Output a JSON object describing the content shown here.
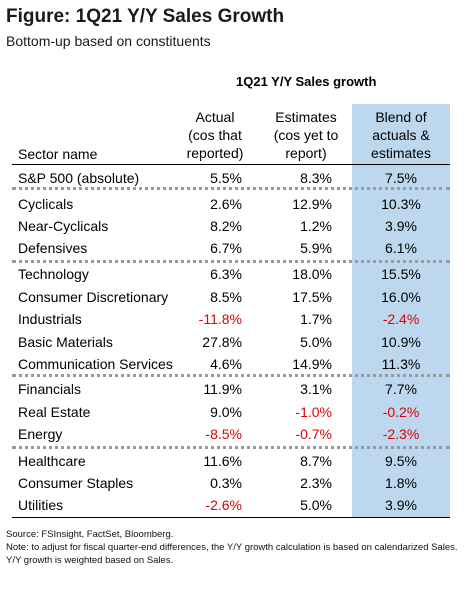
{
  "title": "Figure: 1Q21 Y/Y Sales Growth",
  "subtitle": "Bottom-up based on constituents",
  "group_title": "1Q21 Y/Y Sales growth",
  "headers": {
    "sector": "Sector name",
    "actual": [
      "Actual",
      "(cos that",
      "reported)"
    ],
    "estimates": [
      "Estimates",
      "(cos yet to",
      "report)"
    ],
    "blend": [
      "Blend of",
      "actuals &",
      "estimates"
    ]
  },
  "rows": [
    {
      "name": "S&P 500 (absolute)",
      "actual": "5.5%",
      "estimates": "8.3%",
      "blend": "7.5%"
    },
    {
      "name": "Cyclicals",
      "actual": "2.6%",
      "estimates": "12.9%",
      "blend": "10.3%"
    },
    {
      "name": "Near-Cyclicals",
      "actual": "8.2%",
      "estimates": "1.2%",
      "blend": "3.9%"
    },
    {
      "name": "Defensives",
      "actual": "6.7%",
      "estimates": "5.9%",
      "blend": "6.1%"
    },
    {
      "name": "Technology",
      "actual": "6.3%",
      "estimates": "18.0%",
      "blend": "15.5%"
    },
    {
      "name": "Consumer Discretionary",
      "actual": "8.5%",
      "estimates": "17.5%",
      "blend": "16.0%"
    },
    {
      "name": "Industrials",
      "actual": "-11.8%",
      "estimates": "1.7%",
      "blend": "-2.4%"
    },
    {
      "name": "Basic Materials",
      "actual": "27.8%",
      "estimates": "5.0%",
      "blend": "10.9%"
    },
    {
      "name": "Communication Services",
      "actual": "4.6%",
      "estimates": "14.9%",
      "blend": "11.3%"
    },
    {
      "name": "Financials",
      "actual": "11.9%",
      "estimates": "3.1%",
      "blend": "7.7%"
    },
    {
      "name": "Real Estate",
      "actual": "9.0%",
      "estimates": "-1.0%",
      "blend": "-0.2%"
    },
    {
      "name": "Energy",
      "actual": "-8.5%",
      "estimates": "-0.7%",
      "blend": "-2.3%"
    },
    {
      "name": "Healthcare",
      "actual": "11.6%",
      "estimates": "8.7%",
      "blend": "9.5%"
    },
    {
      "name": "Consumer Staples",
      "actual": "0.3%",
      "estimates": "2.3%",
      "blend": "1.8%"
    },
    {
      "name": "Utilities",
      "actual": "-2.6%",
      "estimates": "5.0%",
      "blend": "3.9%"
    }
  ],
  "source": "Source: FSInsight, FactSet, Bloomberg.",
  "note": "Note: to adjust for fiscal quarter-end differences, the Y/Y growth calculation is based on calendarized Sales. Y/Y growth is weighted based on Sales.",
  "colors": {
    "negative": "#e00000",
    "blend_highlight": "#bdd7ee",
    "separator": "#9a9a9a"
  }
}
